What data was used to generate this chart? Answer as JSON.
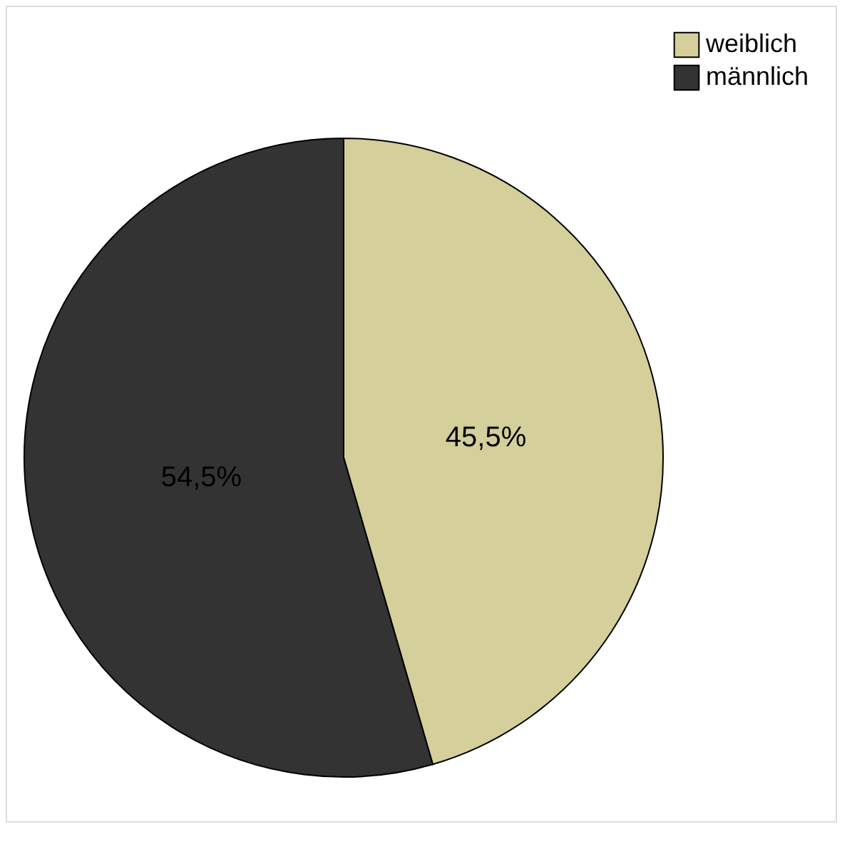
{
  "chart_data": {
    "type": "pie",
    "categories": [
      "weiblich",
      "männlich"
    ],
    "values": [
      45.5,
      54.5
    ],
    "value_labels": [
      "45,5%",
      "54,5%"
    ],
    "colors": [
      "#d4cf9b",
      "#333333"
    ],
    "legend": "top right"
  }
}
